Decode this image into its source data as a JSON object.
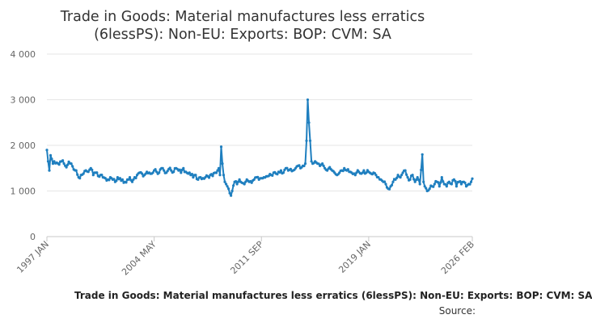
{
  "chart_data": {
    "type": "line",
    "title": "Trade in Goods: Material manufactures less erratics (6lessPS): Non-EU: Exports: BOP: CVM: SA",
    "title_lines": [
      "Trade in Goods: Material manufactures less erratics",
      "(6lessPS): Non-EU: Exports: BOP: CVM: SA"
    ],
    "series_label": "Trade in Goods: Material manufactures less erratics (6lessPS): Non-EU: Exports: BOP: CVM: SA",
    "source_label": "Source:",
    "xlabel": "",
    "ylabel": "",
    "ylim": [
      0,
      4000
    ],
    "yticks": [
      0,
      1000,
      2000,
      3000,
      4000
    ],
    "ytick_labels": [
      "0",
      "1 000",
      "2 000",
      "3 000",
      "4 000"
    ],
    "x_range": [
      "1997-01",
      "2026-02"
    ],
    "xtick_labels": [
      "1997 JAN",
      "2004 MAY",
      "2011 SEP",
      "2019 JAN",
      "2026 FEB"
    ],
    "xtick_months": [
      0,
      88,
      176,
      264,
      349
    ],
    "color": "#1f7fbf",
    "grid": "horizontal",
    "anchors": [
      [
        0,
        1900
      ],
      [
        1,
        1650
      ],
      [
        2,
        1450
      ],
      [
        3,
        1780
      ],
      [
        4,
        1700
      ],
      [
        5,
        1600
      ],
      [
        6,
        1650
      ],
      [
        8,
        1620
      ],
      [
        10,
        1580
      ],
      [
        12,
        1650
      ],
      [
        14,
        1600
      ],
      [
        16,
        1520
      ],
      [
        18,
        1640
      ],
      [
        20,
        1600
      ],
      [
        22,
        1470
      ],
      [
        24,
        1450
      ],
      [
        26,
        1300
      ],
      [
        28,
        1350
      ],
      [
        30,
        1380
      ],
      [
        32,
        1450
      ],
      [
        34,
        1420
      ],
      [
        36,
        1500
      ],
      [
        38,
        1350
      ],
      [
        40,
        1400
      ],
      [
        42,
        1330
      ],
      [
        44,
        1350
      ],
      [
        46,
        1300
      ],
      [
        48,
        1280
      ],
      [
        50,
        1250
      ],
      [
        52,
        1300
      ],
      [
        54,
        1250
      ],
      [
        56,
        1200
      ],
      [
        58,
        1300
      ],
      [
        60,
        1280
      ],
      [
        62,
        1250
      ],
      [
        64,
        1200
      ],
      [
        66,
        1250
      ],
      [
        68,
        1300
      ],
      [
        70,
        1200
      ],
      [
        72,
        1300
      ],
      [
        74,
        1350
      ],
      [
        76,
        1400
      ],
      [
        78,
        1380
      ],
      [
        80,
        1350
      ],
      [
        82,
        1420
      ],
      [
        84,
        1400
      ],
      [
        86,
        1380
      ],
      [
        88,
        1450
      ],
      [
        90,
        1420
      ],
      [
        92,
        1400
      ],
      [
        94,
        1500
      ],
      [
        96,
        1450
      ],
      [
        98,
        1400
      ],
      [
        100,
        1480
      ],
      [
        102,
        1450
      ],
      [
        104,
        1420
      ],
      [
        106,
        1500
      ],
      [
        108,
        1450
      ],
      [
        110,
        1400
      ],
      [
        112,
        1500
      ],
      [
        114,
        1420
      ],
      [
        116,
        1380
      ],
      [
        118,
        1350
      ],
      [
        120,
        1300
      ],
      [
        122,
        1350
      ],
      [
        124,
        1250
      ],
      [
        126,
        1300
      ],
      [
        128,
        1280
      ],
      [
        130,
        1300
      ],
      [
        132,
        1320
      ],
      [
        134,
        1350
      ],
      [
        136,
        1330
      ],
      [
        138,
        1400
      ],
      [
        140,
        1450
      ],
      [
        141,
        1500
      ],
      [
        142,
        1350
      ],
      [
        143,
        1970
      ],
      [
        144,
        1600
      ],
      [
        145,
        1350
      ],
      [
        146,
        1200
      ],
      [
        147,
        1150
      ],
      [
        148,
        1100
      ],
      [
        149,
        1050
      ],
      [
        150,
        950
      ],
      [
        151,
        900
      ],
      [
        152,
        1000
      ],
      [
        154,
        1200
      ],
      [
        156,
        1150
      ],
      [
        158,
        1250
      ],
      [
        160,
        1180
      ],
      [
        162,
        1150
      ],
      [
        164,
        1250
      ],
      [
        166,
        1200
      ],
      [
        168,
        1180
      ],
      [
        170,
        1250
      ],
      [
        172,
        1300
      ],
      [
        174,
        1250
      ],
      [
        176,
        1280
      ],
      [
        178,
        1300
      ],
      [
        180,
        1320
      ],
      [
        182,
        1330
      ],
      [
        184,
        1350
      ],
      [
        186,
        1400
      ],
      [
        188,
        1380
      ],
      [
        190,
        1420
      ],
      [
        192,
        1450
      ],
      [
        194,
        1400
      ],
      [
        196,
        1500
      ],
      [
        198,
        1450
      ],
      [
        200,
        1480
      ],
      [
        202,
        1450
      ],
      [
        204,
        1500
      ],
      [
        206,
        1550
      ],
      [
        208,
        1500
      ],
      [
        210,
        1550
      ],
      [
        212,
        1600
      ],
      [
        213,
        2100
      ],
      [
        214,
        3000
      ],
      [
        215,
        2500
      ],
      [
        216,
        2100
      ],
      [
        217,
        1650
      ],
      [
        218,
        1600
      ],
      [
        220,
        1650
      ],
      [
        222,
        1600
      ],
      [
        224,
        1550
      ],
      [
        226,
        1600
      ],
      [
        228,
        1500
      ],
      [
        230,
        1450
      ],
      [
        232,
        1520
      ],
      [
        234,
        1450
      ],
      [
        236,
        1400
      ],
      [
        238,
        1350
      ],
      [
        240,
        1400
      ],
      [
        242,
        1450
      ],
      [
        244,
        1500
      ],
      [
        246,
        1450
      ],
      [
        248,
        1420
      ],
      [
        250,
        1400
      ],
      [
        252,
        1380
      ],
      [
        254,
        1400
      ],
      [
        256,
        1420
      ],
      [
        258,
        1380
      ],
      [
        260,
        1450
      ],
      [
        262,
        1400
      ],
      [
        264,
        1420
      ],
      [
        266,
        1380
      ],
      [
        268,
        1400
      ],
      [
        270,
        1350
      ],
      [
        272,
        1300
      ],
      [
        274,
        1250
      ],
      [
        276,
        1200
      ],
      [
        278,
        1150
      ],
      [
        280,
        1050
      ],
      [
        282,
        1100
      ],
      [
        284,
        1200
      ],
      [
        286,
        1250
      ],
      [
        288,
        1350
      ],
      [
        290,
        1300
      ],
      [
        292,
        1400
      ],
      [
        294,
        1450
      ],
      [
        296,
        1300
      ],
      [
        298,
        1250
      ],
      [
        300,
        1350
      ],
      [
        302,
        1200
      ],
      [
        304,
        1300
      ],
      [
        306,
        1150
      ],
      [
        308,
        1800
      ],
      [
        309,
        1200
      ],
      [
        310,
        1100
      ],
      [
        312,
        1000
      ],
      [
        314,
        1050
      ],
      [
        316,
        1100
      ],
      [
        318,
        1150
      ],
      [
        320,
        1200
      ],
      [
        322,
        1100
      ],
      [
        324,
        1300
      ],
      [
        326,
        1150
      ],
      [
        328,
        1100
      ],
      [
        330,
        1200
      ],
      [
        332,
        1150
      ],
      [
        334,
        1250
      ],
      [
        336,
        1100
      ],
      [
        338,
        1200
      ],
      [
        340,
        1150
      ],
      [
        342,
        1200
      ],
      [
        344,
        1100
      ],
      [
        346,
        1150
      ],
      [
        348,
        1200
      ],
      [
        349,
        1270
      ]
    ]
  }
}
